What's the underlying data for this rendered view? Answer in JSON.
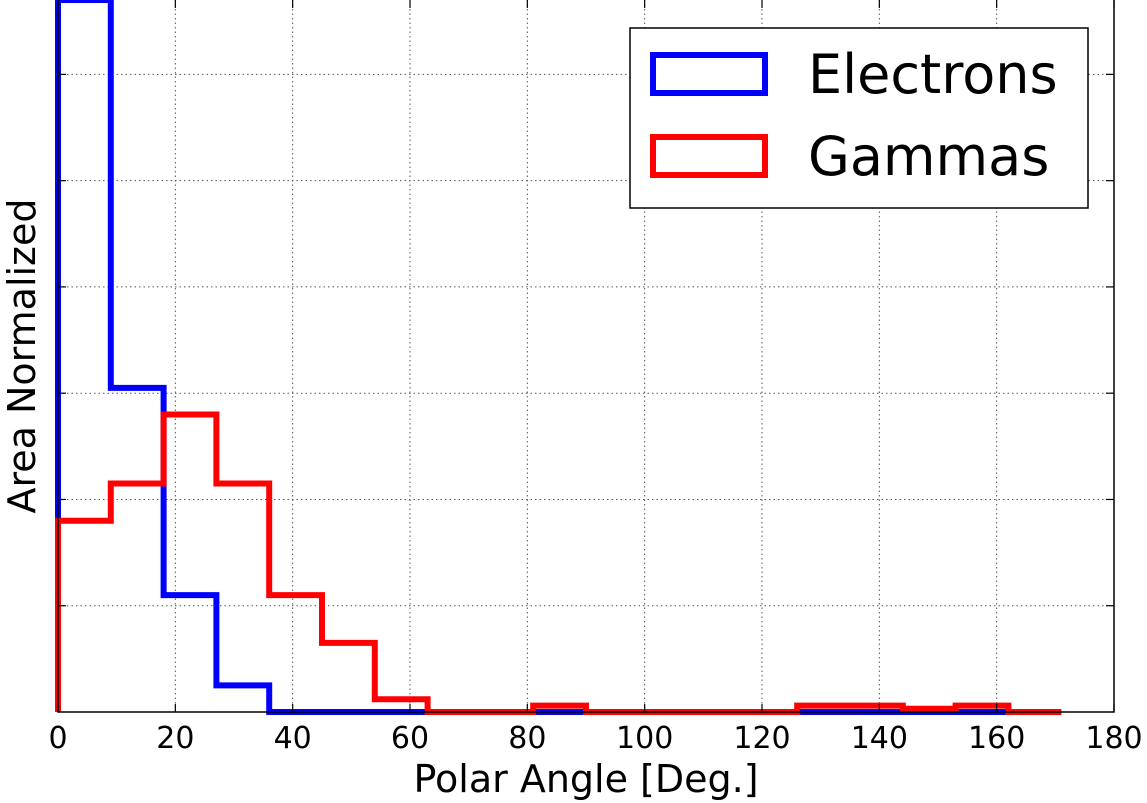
{
  "chart_data": {
    "type": "histogram",
    "xlabel": "Polar Angle [Deg.]",
    "ylabel": "Area Normalized",
    "xlim": [
      0,
      180
    ],
    "ylim": [
      0,
      6.7
    ],
    "grid": true,
    "grid_style": "dotted",
    "legend_position": "top-right",
    "x_ticks": [
      0,
      20,
      40,
      60,
      80,
      100,
      120,
      140,
      160,
      180
    ],
    "y_ticks": [
      1,
      2,
      3,
      4,
      5,
      6
    ],
    "bin_edges": [
      0,
      9,
      18,
      27,
      36,
      45,
      54,
      63,
      72,
      81,
      90,
      99,
      108,
      117,
      126,
      135,
      144,
      153,
      162,
      171
    ],
    "series": [
      {
        "name": "Electrons",
        "color": "#0000ff",
        "values": [
          6.7,
          3.05,
          1.1,
          0.25,
          0,
          0,
          0,
          0,
          0,
          0,
          0,
          0,
          0,
          0,
          0,
          0,
          0,
          0,
          0
        ]
      },
      {
        "name": "Gammas",
        "color": "#ff0000",
        "values": [
          1.8,
          2.15,
          2.8,
          2.15,
          1.1,
          0.65,
          0.12,
          0,
          0,
          0.06,
          0,
          0,
          0,
          0,
          0.06,
          0.06,
          0.03,
          0.06,
          0
        ]
      }
    ]
  }
}
